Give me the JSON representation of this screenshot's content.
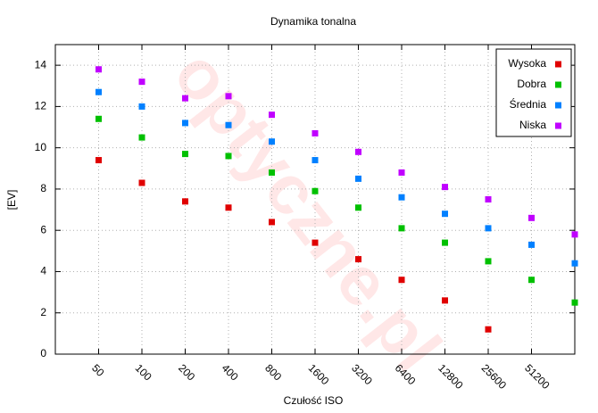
{
  "chart_data": {
    "type": "scatter",
    "title": "Dynamika tonalna",
    "x_label": "Czułość ISO",
    "y_label": "[EV]",
    "watermark": "optyczne.pl",
    "categories": [
      "50",
      "100",
      "200",
      "400",
      "800",
      "1600",
      "3200",
      "6400",
      "12800",
      "25600",
      "51200",
      null
    ],
    "series": [
      {
        "name": "Wysoka",
        "color": "#e00000",
        "values": [
          9.4,
          8.3,
          7.4,
          7.1,
          6.4,
          5.4,
          4.6,
          3.6,
          2.6,
          1.2,
          null,
          null
        ]
      },
      {
        "name": "Dobra",
        "color": "#00c000",
        "values": [
          11.4,
          10.5,
          9.7,
          9.6,
          8.8,
          7.9,
          7.1,
          6.1,
          5.4,
          4.5,
          3.6,
          2.5
        ]
      },
      {
        "name": "Średnia",
        "color": "#0080ff",
        "values": [
          12.7,
          12.0,
          11.2,
          11.1,
          10.3,
          9.4,
          8.5,
          7.6,
          6.8,
          6.1,
          5.3,
          4.4
        ]
      },
      {
        "name": "Niska",
        "color": "#c000ff",
        "values": [
          13.8,
          13.2,
          12.4,
          12.5,
          11.6,
          10.7,
          9.8,
          8.8,
          8.1,
          7.5,
          6.6,
          5.8
        ]
      }
    ],
    "ylim": [
      0,
      15
    ],
    "yticks": [
      0,
      2,
      4,
      6,
      8,
      10,
      12,
      14
    ],
    "grid": true,
    "legend": "upper right"
  }
}
